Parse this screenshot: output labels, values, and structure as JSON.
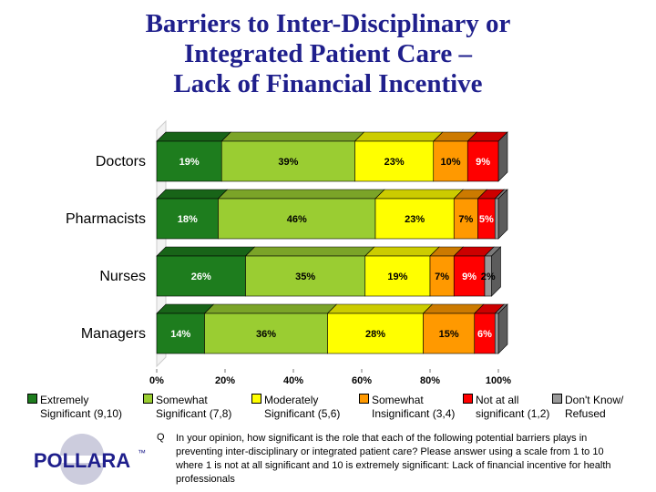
{
  "title_lines": [
    "Barriers to Inter-Disciplinary or",
    "Integrated Patient Care –",
    "Lack of Financial Incentive"
  ],
  "legend": [
    {
      "line1": "Extremely",
      "line2": "Significant (9,10)",
      "color": "#1e7d1e"
    },
    {
      "line1": "Somewhat",
      "line2": "Significant (7,8)",
      "color": "#9acd32"
    },
    {
      "line1": "Moderately",
      "line2": "Significant (5,6)",
      "color": "#ffff00"
    },
    {
      "line1": "Somewhat",
      "line2": "Insignificant (3,4)",
      "color": "#ff9900"
    },
    {
      "line1": "Not at all",
      "line2": "significant (1,2)",
      "color": "#ff0000"
    },
    {
      "line1": "Don't Know/",
      "line2": "Refused",
      "color": "#999999"
    }
  ],
  "question_marker": "Q",
  "question_text": "In your opinion, how significant is the role that each of the following potential barriers plays in preventing inter-disciplinary or integrated patient care? Please answer using a scale from 1 to 10 where 1 is not at all significant and 10 is extremely significant: Lack of financial incentive for health professionals",
  "logo_text": "POLLARA",
  "logo_mark": "™",
  "chart_data": {
    "type": "bar",
    "orientation": "horizontal",
    "stacked": true,
    "three_d": true,
    "categories": [
      "Doctors",
      "Pharmacists",
      "Nurses",
      "Managers"
    ],
    "series": [
      {
        "name": "Extremely Significant (9,10)",
        "color": "#1e7d1e",
        "values": [
          19,
          18,
          26,
          14
        ],
        "labels": [
          "19%",
          "18%",
          "26%",
          "14%"
        ]
      },
      {
        "name": "Somewhat Significant (7,8)",
        "color": "#9acd32",
        "values": [
          39,
          46,
          35,
          36
        ],
        "labels": [
          "39%",
          "46%",
          "35%",
          "36%"
        ]
      },
      {
        "name": "Moderately Significant (5,6)",
        "color": "#ffff00",
        "values": [
          23,
          23,
          19,
          28
        ],
        "labels": [
          "23%",
          "23%",
          "19%",
          "28%"
        ]
      },
      {
        "name": "Somewhat Insignificant (3,4)",
        "color": "#ff9900",
        "values": [
          10,
          7,
          7,
          15
        ],
        "labels": [
          "10%",
          "7%",
          "7%",
          "15%"
        ]
      },
      {
        "name": "Not at all significant (1,2)",
        "color": "#ff0000",
        "values": [
          9,
          5,
          9,
          6
        ],
        "labels": [
          "9%",
          "5%",
          "9%",
          "6%"
        ]
      },
      {
        "name": "Don't Know/Refused",
        "color": "#999999",
        "values": [
          0,
          1,
          2,
          1
        ],
        "labels": [
          "",
          "",
          "2%",
          ""
        ]
      }
    ],
    "xlim": [
      0,
      100
    ],
    "xticks": [
      "0%",
      "20%",
      "40%",
      "60%",
      "80%",
      "100%"
    ],
    "legend_position": "bottom",
    "grid": false
  }
}
